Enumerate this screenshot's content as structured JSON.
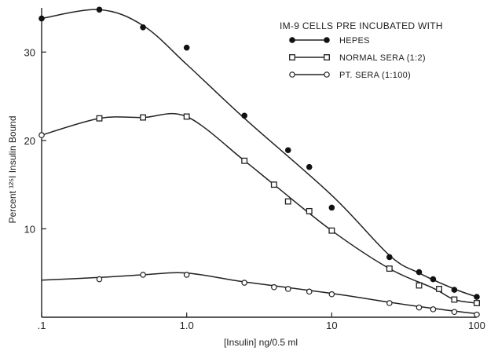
{
  "chart_data": {
    "type": "scatter",
    "xlabel": "[Insulin] ng/0.5 ml",
    "ylabel": "Percent ¹²⁵I Insulin Bound",
    "x_scale": "log",
    "xlim": [
      0.1,
      100
    ],
    "ylim": [
      0,
      35
    ],
    "grid": false,
    "x_ticks": [
      {
        "value": 0.1,
        "label": ".1"
      },
      {
        "value": 1,
        "label": "1.0"
      },
      {
        "value": 10,
        "label": "10"
      },
      {
        "value": 100,
        "label": "100"
      }
    ],
    "y_ticks": [
      {
        "value": 10,
        "label": "10"
      },
      {
        "value": 20,
        "label": "20"
      },
      {
        "value": 30,
        "label": "30"
      }
    ],
    "legend": {
      "title": "IM-9 CELLS PRE INCUBATED WITH",
      "position": "top-right"
    },
    "series": [
      {
        "name": "HEPES",
        "marker": "filled-circle",
        "points": [
          {
            "x": 0.1,
            "y": 33.8
          },
          {
            "x": 0.25,
            "y": 34.8
          },
          {
            "x": 0.5,
            "y": 32.8
          },
          {
            "x": 1.0,
            "y": 30.5
          },
          {
            "x": 2.5,
            "y": 22.8
          },
          {
            "x": 5,
            "y": 18.9
          },
          {
            "x": 7,
            "y": 17.0
          },
          {
            "x": 10,
            "y": 12.4
          },
          {
            "x": 25,
            "y": 6.8
          },
          {
            "x": 40,
            "y": 5.1
          },
          {
            "x": 50,
            "y": 4.3
          },
          {
            "x": 70,
            "y": 3.1
          },
          {
            "x": 100,
            "y": 2.3
          }
        ],
        "curve": [
          {
            "x": 0.1,
            "y": 33.8
          },
          {
            "x": 0.25,
            "y": 34.8
          },
          {
            "x": 0.5,
            "y": 33.0
          },
          {
            "x": 1.0,
            "y": 28.6
          },
          {
            "x": 2.5,
            "y": 22.5
          },
          {
            "x": 10,
            "y": 13.8
          },
          {
            "x": 25,
            "y": 7.0
          },
          {
            "x": 40,
            "y": 5.0
          },
          {
            "x": 70,
            "y": 3.2
          },
          {
            "x": 100,
            "y": 2.3
          }
        ]
      },
      {
        "name": "NORMAL SERA (1:2)",
        "marker": "open-square",
        "points": [
          {
            "x": 0.25,
            "y": 22.5
          },
          {
            "x": 0.5,
            "y": 22.6
          },
          {
            "x": 1.0,
            "y": 22.7
          },
          {
            "x": 2.5,
            "y": 17.7
          },
          {
            "x": 4,
            "y": 15.0
          },
          {
            "x": 5,
            "y": 13.1
          },
          {
            "x": 7,
            "y": 12.0
          },
          {
            "x": 10,
            "y": 9.8
          },
          {
            "x": 25,
            "y": 5.5
          },
          {
            "x": 40,
            "y": 3.6
          },
          {
            "x": 55,
            "y": 3.2
          },
          {
            "x": 70,
            "y": 2.0
          },
          {
            "x": 100,
            "y": 1.6
          }
        ],
        "curve": [
          {
            "x": 0.1,
            "y": 20.6
          },
          {
            "x": 0.25,
            "y": 22.5
          },
          {
            "x": 0.5,
            "y": 22.6
          },
          {
            "x": 1.0,
            "y": 22.7
          },
          {
            "x": 2.5,
            "y": 17.7
          },
          {
            "x": 4,
            "y": 15.0
          },
          {
            "x": 10,
            "y": 9.8
          },
          {
            "x": 25,
            "y": 5.5
          },
          {
            "x": 50,
            "y": 3.3
          },
          {
            "x": 70,
            "y": 2.0
          },
          {
            "x": 100,
            "y": 1.6
          }
        ]
      },
      {
        "name": "PT. SERA (1:100)",
        "marker": "open-circle",
        "points": [
          {
            "x": 0.1,
            "y": 20.6
          },
          {
            "x": 0.25,
            "y": 4.3
          },
          {
            "x": 0.5,
            "y": 4.8
          },
          {
            "x": 1.0,
            "y": 4.8
          },
          {
            "x": 2.5,
            "y": 3.9
          },
          {
            "x": 4,
            "y": 3.4
          },
          {
            "x": 5,
            "y": 3.2
          },
          {
            "x": 7,
            "y": 2.9
          },
          {
            "x": 10,
            "y": 2.6
          },
          {
            "x": 25,
            "y": 1.6
          },
          {
            "x": 40,
            "y": 1.1
          },
          {
            "x": 50,
            "y": 0.9
          },
          {
            "x": 70,
            "y": 0.6
          },
          {
            "x": 100,
            "y": 0.3
          }
        ],
        "curve": [
          {
            "x": 0.1,
            "y": 4.2
          },
          {
            "x": 0.25,
            "y": 4.5
          },
          {
            "x": 0.5,
            "y": 4.8
          },
          {
            "x": 1.0,
            "y": 5.0
          },
          {
            "x": 2.5,
            "y": 4.0
          },
          {
            "x": 10,
            "y": 2.7
          },
          {
            "x": 25,
            "y": 1.7
          },
          {
            "x": 50,
            "y": 1.0
          },
          {
            "x": 100,
            "y": 0.4
          }
        ]
      }
    ]
  }
}
